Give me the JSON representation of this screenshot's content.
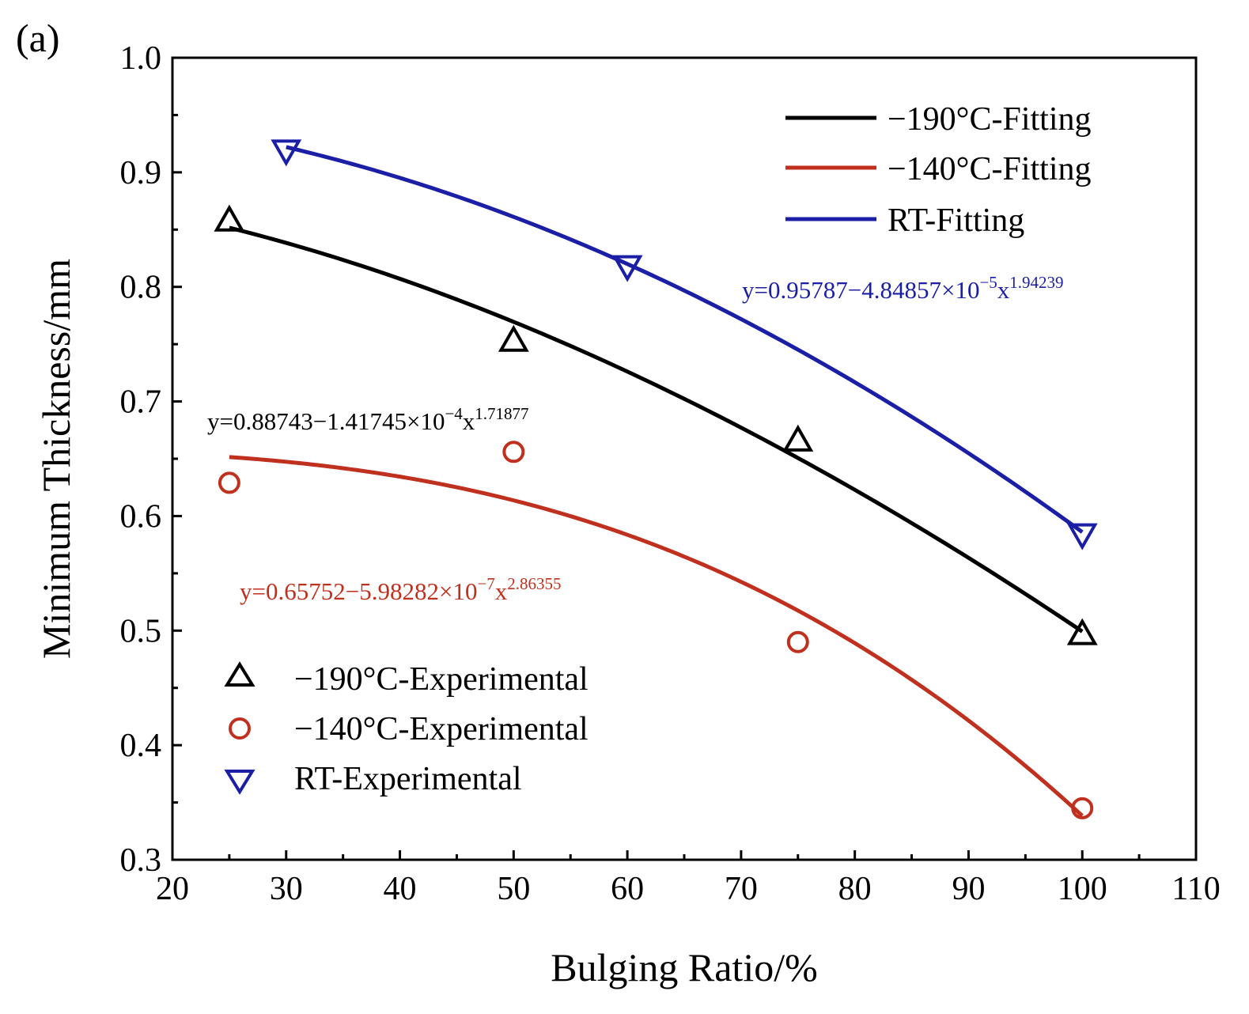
{
  "chart_data": {
    "type": "scatter",
    "panel_label": "(a)",
    "xlabel": "Bulging Ratio/%",
    "ylabel": "Minimum Thickness/mm",
    "xlim": [
      20,
      110
    ],
    "ylim": [
      0.3,
      1.0
    ],
    "xticks": [
      20,
      30,
      40,
      50,
      60,
      70,
      80,
      90,
      100,
      110
    ],
    "yticks": [
      0.3,
      0.4,
      0.5,
      0.6,
      0.7,
      0.8,
      0.9,
      1.0
    ],
    "xtick_labels": [
      "20",
      "30",
      "40",
      "50",
      "60",
      "70",
      "80",
      "90",
      "100",
      "110"
    ],
    "ytick_labels": [
      "0.3",
      "0.4",
      "0.5",
      "0.6",
      "0.7",
      "0.8",
      "0.9",
      "1.0"
    ],
    "grid": false,
    "series": [
      {
        "key": "n190",
        "name": "−190°C-Experimental",
        "fit_name": "−190°C-Fitting",
        "marker": "triangle-up",
        "color": "#000000",
        "x": [
          25,
          50,
          75,
          100
        ],
        "y": [
          0.858,
          0.753,
          0.666,
          0.497
        ],
        "fit": {
          "a": 0.88743,
          "b": 0.000141745,
          "c": 1.71877,
          "x_range": [
            25,
            100
          ]
        },
        "eq_main": "y=0.88743−1.41745×10",
        "eq_exp": "−4",
        "eq_x": "x",
        "eq_pow": "1.71877"
      },
      {
        "key": "n140",
        "name": "−140°C-Experimental",
        "fit_name": "−140°C-Fitting",
        "marker": "circle",
        "color": "#c0301e",
        "x": [
          25,
          50,
          75,
          100
        ],
        "y": [
          0.629,
          0.656,
          0.49,
          0.345
        ],
        "fit": {
          "a": 0.65752,
          "b": 5.98282e-07,
          "c": 2.86355,
          "x_range": [
            25,
            100
          ]
        },
        "eq_main": "y=0.65752−5.98282×10",
        "eq_exp": "−7",
        "eq_x": "x",
        "eq_pow": "2.86355"
      },
      {
        "key": "rt",
        "name": "RT-Experimental",
        "fit_name": "RT-Fitting",
        "marker": "triangle-down",
        "color": "#1a1fa6",
        "x": [
          30,
          60,
          100
        ],
        "y": [
          0.919,
          0.818,
          0.584
        ],
        "fit": {
          "a": 0.95787,
          "b": 4.84857e-05,
          "c": 1.94239,
          "x_range": [
            30,
            100
          ]
        },
        "eq_main": "y=0.95787−4.84857×10",
        "eq_exp": "−5",
        "eq_x": "x",
        "eq_pow": "1.94239"
      }
    ],
    "legend_fitting_placement": "top-right",
    "legend_experimental_placement": "bottom-left"
  }
}
